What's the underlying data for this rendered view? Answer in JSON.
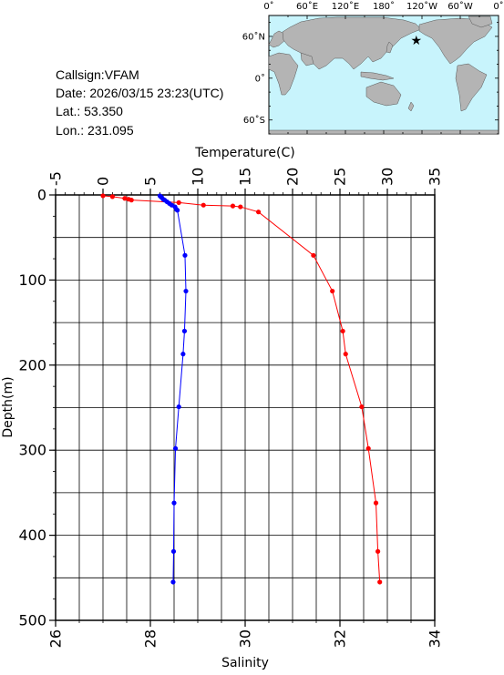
{
  "info": {
    "callsign": "Callsign:VFAM",
    "date": "Date:  2026/03/15 23:23(UTC)",
    "lat": "Lat.:   53.350",
    "lon": "Lon.:  231.095"
  },
  "map": {
    "top_labels": [
      "0˚",
      "60˚E",
      "120˚E",
      "180˚",
      "120˚W",
      "60˚W",
      "0˚"
    ],
    "left_labels": [
      "60˚N",
      "0˚",
      "60˚S"
    ],
    "ocean_color": "#c8f4fc",
    "land_color": "#b4b4b4",
    "marker": {
      "lon": 231.095,
      "lat": 53.35,
      "color": "#ff0000",
      "icon": "star-icon"
    }
  },
  "chart_data": {
    "type": "line",
    "title": "",
    "xlabel_top": "Temperature(C)",
    "xlabel_bottom": "Salinity",
    "ylabel": "Depth(m)",
    "temperature_axis": {
      "min": -5,
      "max": 35,
      "ticks": [
        -5,
        0,
        5,
        10,
        15,
        20,
        25,
        30,
        35
      ]
    },
    "salinity_axis": {
      "min": 26,
      "max": 34,
      "ticks": [
        26,
        28,
        30,
        32,
        34
      ]
    },
    "depth_axis": {
      "min": 0,
      "max": 500,
      "reversed": true,
      "ticks": [
        0,
        100,
        200,
        300,
        400,
        500
      ]
    },
    "grid": true,
    "series": [
      {
        "axis": "temperature",
        "color": "#ff0000",
        "points": [
          [
            0.0,
            1
          ],
          [
            1.0,
            2
          ],
          [
            2.3,
            4
          ],
          [
            2.7,
            5
          ],
          [
            3.0,
            6
          ],
          [
            8.0,
            9
          ],
          [
            10.6,
            12
          ],
          [
            13.7,
            13
          ],
          [
            14.5,
            14
          ],
          [
            16.4,
            20
          ],
          [
            22.2,
            71
          ],
          [
            24.2,
            113
          ],
          [
            25.3,
            160
          ],
          [
            25.6,
            187
          ],
          [
            27.3,
            249
          ],
          [
            28.0,
            298
          ],
          [
            28.8,
            362
          ],
          [
            29.0,
            419
          ],
          [
            29.2,
            455
          ]
        ]
      },
      {
        "axis": "salinity",
        "color": "#0000ff",
        "points": [
          [
            28.2,
            1
          ],
          [
            28.22,
            2
          ],
          [
            28.24,
            3
          ],
          [
            28.27,
            5
          ],
          [
            28.3,
            6
          ],
          [
            28.35,
            8
          ],
          [
            28.4,
            10
          ],
          [
            28.45,
            12
          ],
          [
            28.52,
            14
          ],
          [
            28.55,
            17
          ],
          [
            28.57,
            18
          ],
          [
            28.73,
            71
          ],
          [
            28.75,
            113
          ],
          [
            28.72,
            160
          ],
          [
            28.69,
            187
          ],
          [
            28.6,
            249
          ],
          [
            28.53,
            298
          ],
          [
            28.5,
            362
          ],
          [
            28.49,
            419
          ],
          [
            28.48,
            455
          ]
        ]
      }
    ]
  }
}
